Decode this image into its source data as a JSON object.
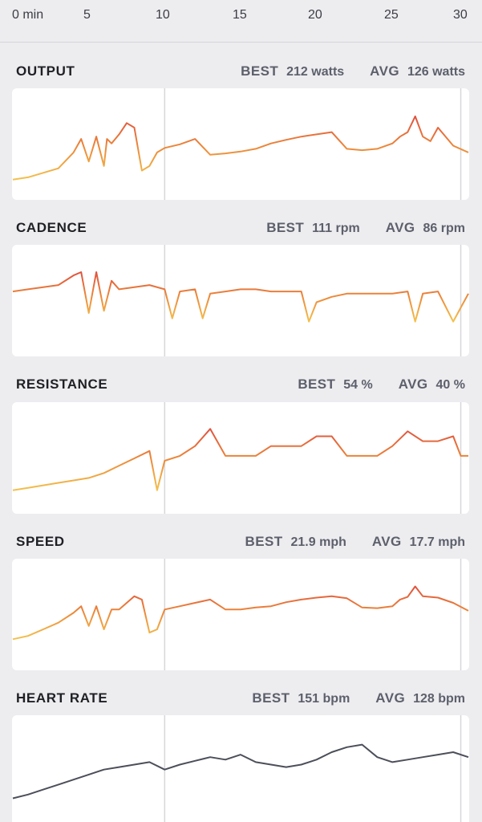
{
  "time_axis": {
    "ticks": [
      "0 min",
      "5",
      "10",
      "15",
      "20",
      "25",
      "30"
    ]
  },
  "metrics": [
    {
      "key": "output",
      "title": "OUTPUT",
      "best_label": "BEST",
      "best_value": "212 watts",
      "avg_label": "AVG",
      "avg_value": "126 watts"
    },
    {
      "key": "cadence",
      "title": "CADENCE",
      "best_label": "BEST",
      "best_value": "111 rpm",
      "avg_label": "AVG",
      "avg_value": "86 rpm"
    },
    {
      "key": "resistance",
      "title": "RESISTANCE",
      "best_label": "BEST",
      "best_value": "54 %",
      "avg_label": "AVG",
      "avg_value": "40 %"
    },
    {
      "key": "speed",
      "title": "SPEED",
      "best_label": "BEST",
      "best_value": "21.9 mph",
      "avg_label": "AVG",
      "avg_value": "17.7 mph"
    },
    {
      "key": "heart_rate",
      "title": "HEART RATE",
      "best_label": "BEST",
      "best_value": "151 bpm",
      "avg_label": "AVG",
      "avg_value": "128 bpm"
    }
  ],
  "colors": {
    "low": "#f2c14e",
    "mid": "#ec8a3a",
    "high": "#e0523f",
    "heart_line": "#4c4f5a",
    "marker": "#d7d7db"
  },
  "chart_data": [
    {
      "type": "line",
      "series": [
        {
          "name": "OUTPUT",
          "x": [
            0,
            1,
            2,
            3,
            4,
            4.5,
            5,
            5.5,
            6,
            6.2,
            6.5,
            7,
            7.5,
            8,
            8.5,
            9,
            9.5,
            10,
            11,
            12,
            13,
            14,
            15,
            16,
            17,
            18,
            19,
            20,
            21,
            22,
            23,
            24,
            25,
            25.5,
            26,
            26.5,
            27,
            27.5,
            28,
            29,
            30
          ],
          "values": [
            60,
            65,
            75,
            85,
            120,
            150,
            100,
            155,
            90,
            150,
            140,
            160,
            185,
            175,
            80,
            90,
            120,
            130,
            138,
            150,
            115,
            118,
            122,
            128,
            140,
            148,
            155,
            160,
            165,
            128,
            125,
            128,
            140,
            155,
            165,
            200,
            155,
            145,
            175,
            135,
            120
          ]
        }
      ],
      "ylim": [
        40,
        230
      ]
    },
    {
      "type": "line",
      "series": [
        {
          "name": "CADENCE",
          "x": [
            0,
            1,
            2,
            3,
            4,
            4.5,
            5,
            5.5,
            6,
            6.5,
            7,
            8,
            9,
            10,
            10.5,
            11,
            12,
            12.5,
            13,
            14,
            15,
            16,
            17,
            18,
            19,
            19.5,
            20,
            21,
            22,
            23,
            24,
            25,
            26,
            26.5,
            27,
            28,
            29,
            30
          ],
          "values": [
            90,
            92,
            94,
            96,
            105,
            108,
            70,
            108,
            72,
            100,
            92,
            94,
            96,
            92,
            65,
            90,
            92,
            65,
            88,
            90,
            92,
            92,
            90,
            90,
            90,
            62,
            80,
            85,
            88,
            88,
            88,
            88,
            90,
            62,
            88,
            90,
            62,
            88
          ]
        }
      ],
      "ylim": [
        40,
        120
      ]
    },
    {
      "type": "line",
      "series": [
        {
          "name": "RESISTANCE",
          "x": [
            0,
            1,
            2,
            3,
            4,
            5,
            6,
            7,
            8,
            9,
            9.5,
            10,
            11,
            12,
            13,
            14,
            15,
            16,
            17,
            18,
            19,
            20,
            21,
            22,
            23,
            24,
            25,
            26,
            27,
            28,
            29,
            29.5,
            30
          ],
          "values": [
            30,
            31,
            32,
            33,
            34,
            35,
            37,
            40,
            43,
            46,
            30,
            42,
            44,
            48,
            55,
            44,
            44,
            44,
            48,
            48,
            48,
            52,
            52,
            44,
            44,
            44,
            48,
            54,
            50,
            50,
            52,
            44,
            44
          ]
        }
      ],
      "ylim": [
        25,
        60
      ]
    },
    {
      "type": "line",
      "series": [
        {
          "name": "SPEED",
          "x": [
            0,
            1,
            2,
            3,
            4,
            4.5,
            5,
            5.5,
            6,
            6.5,
            7,
            7.5,
            8,
            8.5,
            9,
            9.5,
            10,
            11,
            12,
            13,
            14,
            15,
            16,
            17,
            18,
            19,
            20,
            21,
            22,
            23,
            24,
            25,
            25.5,
            26,
            26.5,
            27,
            28,
            29,
            30
          ],
          "values": [
            13,
            13.5,
            14.5,
            15.5,
            17,
            18,
            15,
            18,
            14.5,
            17.5,
            17.5,
            18.5,
            19.5,
            19,
            14,
            14.5,
            17.5,
            18,
            18.5,
            19,
            17.5,
            17.5,
            17.8,
            18,
            18.6,
            19,
            19.3,
            19.5,
            19.2,
            17.8,
            17.7,
            18,
            19,
            19.4,
            21,
            19.5,
            19.3,
            18.5,
            17.3
          ]
        }
      ],
      "ylim": [
        10,
        23
      ]
    },
    {
      "type": "line",
      "series": [
        {
          "name": "HEART RATE",
          "x": [
            0,
            1,
            2,
            3,
            4,
            5,
            6,
            7,
            8,
            9,
            10,
            11,
            12,
            13,
            14,
            15,
            16,
            17,
            18,
            19,
            20,
            21,
            22,
            23,
            24,
            25,
            26,
            27,
            28,
            29,
            30
          ],
          "values": [
            105,
            108,
            112,
            116,
            120,
            124,
            128,
            130,
            132,
            134,
            128,
            132,
            135,
            138,
            136,
            140,
            134,
            132,
            130,
            132,
            136,
            142,
            146,
            148,
            138,
            134,
            136,
            138,
            140,
            142,
            138
          ]
        }
      ],
      "ylim": [
        95,
        160
      ]
    }
  ]
}
